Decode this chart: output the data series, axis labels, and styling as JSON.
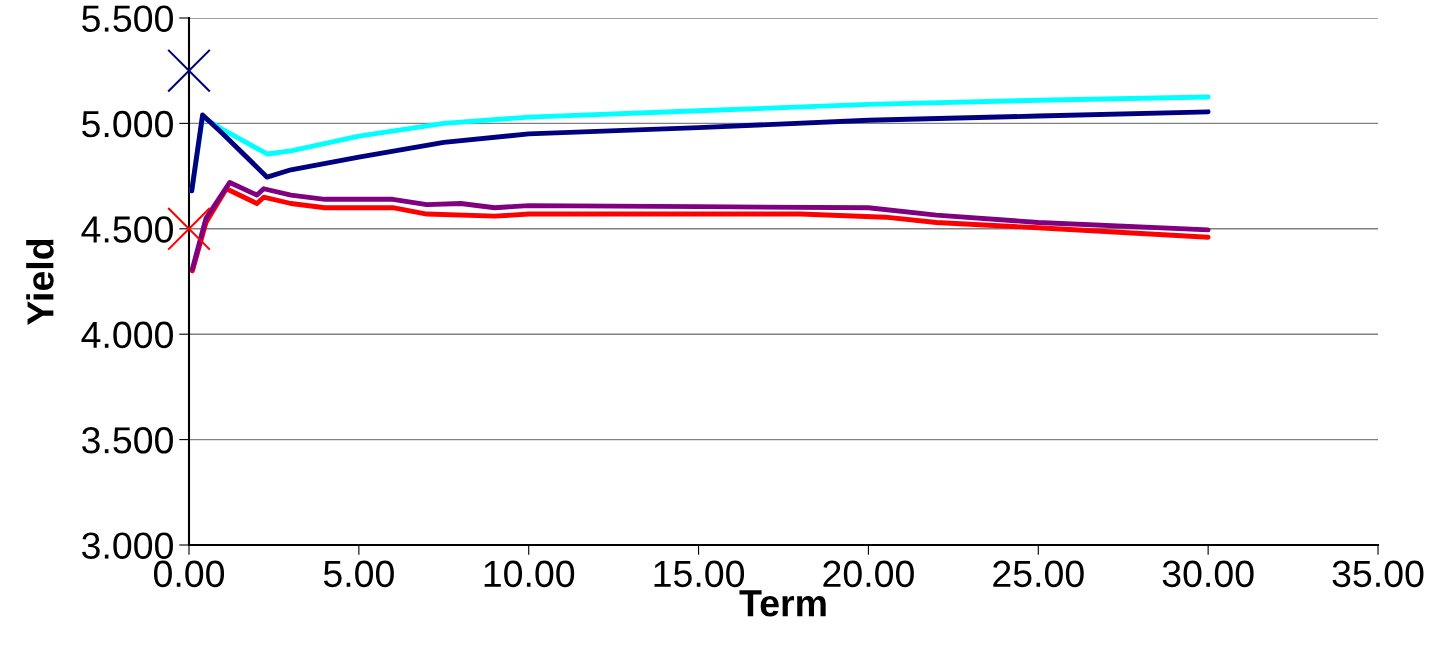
{
  "chart_data": {
    "type": "line",
    "xlabel": "Term",
    "ylabel": "Yield",
    "xlim": [
      0,
      35
    ],
    "ylim": [
      3,
      5.5
    ],
    "xticks": [
      {
        "value": 0,
        "label": "0.00"
      },
      {
        "value": 5,
        "label": "5.00"
      },
      {
        "value": 10,
        "label": "10.00"
      },
      {
        "value": 15,
        "label": "15.00"
      },
      {
        "value": 20,
        "label": "20.00"
      },
      {
        "value": 25,
        "label": "25.00"
      },
      {
        "value": 30,
        "label": "30.00"
      },
      {
        "value": 35,
        "label": "35.00"
      }
    ],
    "yticks": [
      {
        "value": 3,
        "label": "3.000"
      },
      {
        "value": 3.5,
        "label": "3.500"
      },
      {
        "value": 4,
        "label": "4.000"
      },
      {
        "value": 4.5,
        "label": "4.500"
      },
      {
        "value": 5,
        "label": "5.000"
      },
      {
        "value": 5.5,
        "label": "5.500"
      }
    ],
    "grid": "y",
    "legend": false,
    "marker": "none",
    "line_style": "solid",
    "series": [
      {
        "color": "#00ffff",
        "x": [
          0.08,
          0.4,
          1.0,
          2.3,
          3,
          5,
          7.5,
          10,
          15,
          20,
          25,
          30
        ],
        "values": [
          4.68,
          5.03,
          4.97,
          4.855,
          4.87,
          4.94,
          5.0,
          5.03,
          5.06,
          5.09,
          5.11,
          5.125
        ]
      },
      {
        "color": "#000080",
        "x": [
          0.08,
          0.4,
          1.0,
          2.3,
          3,
          5,
          7.5,
          10,
          15,
          20,
          25,
          30
        ],
        "values": [
          4.68,
          5.04,
          4.95,
          4.745,
          4.78,
          4.84,
          4.91,
          4.95,
          4.98,
          5.015,
          5.035,
          5.055
        ]
      },
      {
        "color": "#ff0000",
        "x": [
          0.1,
          0.5,
          1.1,
          2,
          2.2,
          3,
          4,
          6,
          7,
          9,
          10,
          18,
          20.5,
          22,
          25,
          30
        ],
        "values": [
          4.3,
          4.53,
          4.69,
          4.62,
          4.65,
          4.62,
          4.6,
          4.6,
          4.57,
          4.56,
          4.57,
          4.57,
          4.555,
          4.53,
          4.505,
          4.46
        ]
      },
      {
        "color": "#800080",
        "x": [
          0.1,
          0.5,
          1.2,
          2,
          2.2,
          3,
          4,
          6,
          7,
          8,
          9,
          10,
          15,
          20,
          22,
          25,
          30
        ],
        "values": [
          4.31,
          4.55,
          4.72,
          4.66,
          4.69,
          4.66,
          4.64,
          4.64,
          4.615,
          4.62,
          4.6,
          4.61,
          4.605,
          4.6,
          4.565,
          4.53,
          4.495
        ]
      },
      {
        "type": "scatter",
        "marker": "cross",
        "color": "#000080",
        "x": [
          0
        ],
        "values": [
          5.25
        ]
      },
      {
        "type": "scatter",
        "marker": "cross",
        "color": "#ff0000",
        "x": [
          0
        ],
        "values": [
          4.5
        ]
      }
    ]
  }
}
